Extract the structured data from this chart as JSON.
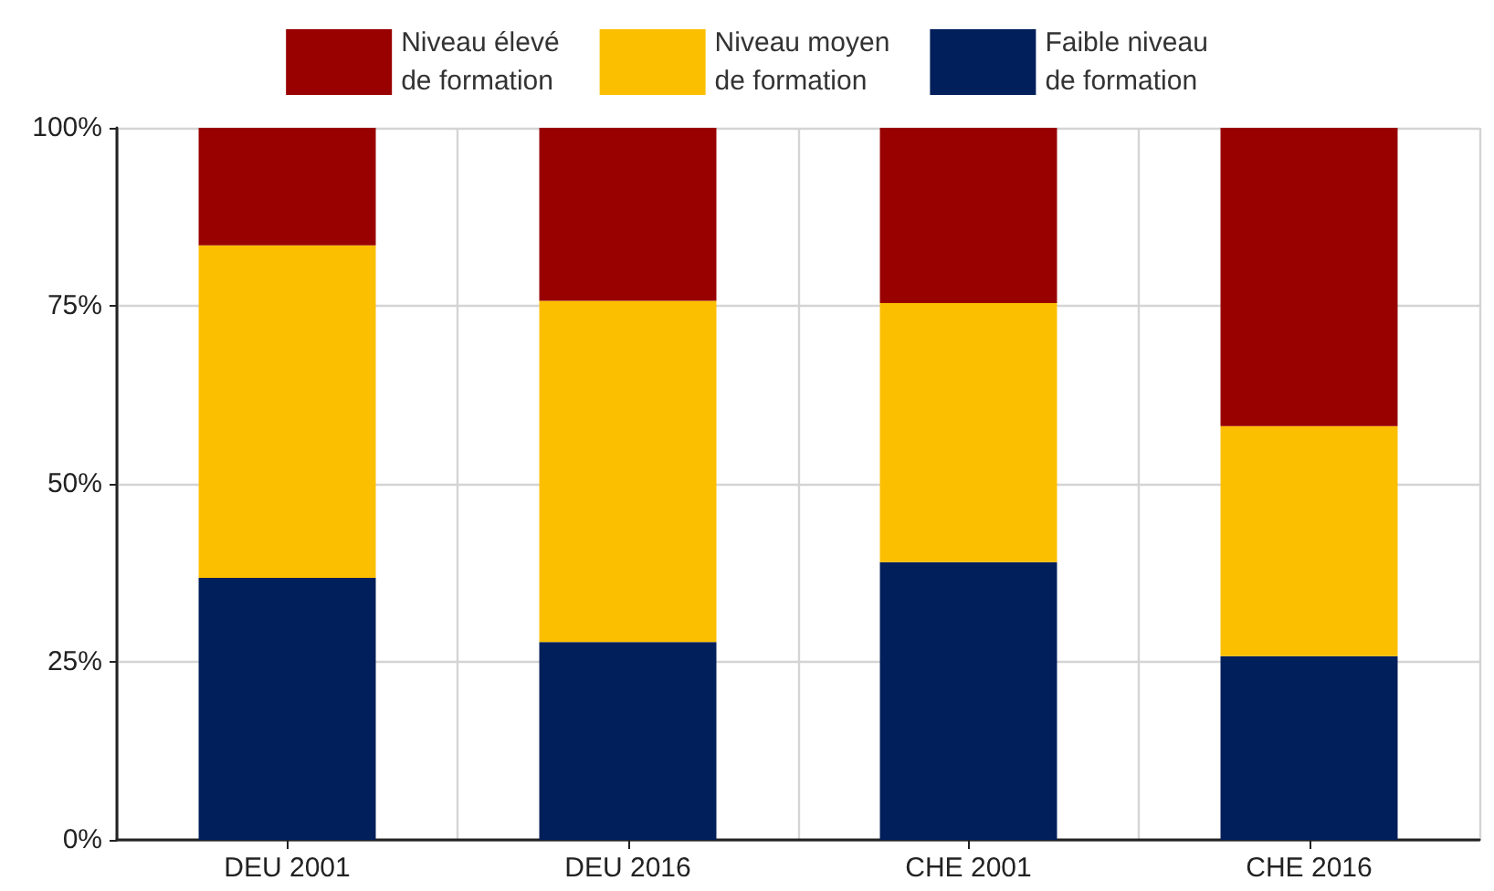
{
  "chart_data": {
    "type": "bar",
    "stacked": true,
    "categories": [
      "DEU 2001",
      "DEU 2016",
      "CHE 2001",
      "CHE 2016"
    ],
    "series": [
      {
        "name": "Faible niveau\nde formation",
        "color": "#001f5b",
        "values": [
          36.8,
          27.8,
          39.0,
          25.8
        ]
      },
      {
        "name": "Niveau moyen\nde formation",
        "color": "#fcbf00",
        "values": [
          46.7,
          47.9,
          36.4,
          32.3
        ]
      },
      {
        "name": "Niveau élevé\nde formation",
        "color": "#990000",
        "values": [
          16.5,
          24.3,
          24.6,
          41.9
        ]
      }
    ],
    "ylim": [
      0,
      100
    ],
    "yticks": [
      {
        "value": 0,
        "label": "0%"
      },
      {
        "value": 25,
        "label": "25%"
      },
      {
        "value": 50,
        "label": "50%"
      },
      {
        "value": 75,
        "label": "75%"
      },
      {
        "value": 100,
        "label": "100%"
      }
    ],
    "grid": true,
    "legend": "top"
  }
}
